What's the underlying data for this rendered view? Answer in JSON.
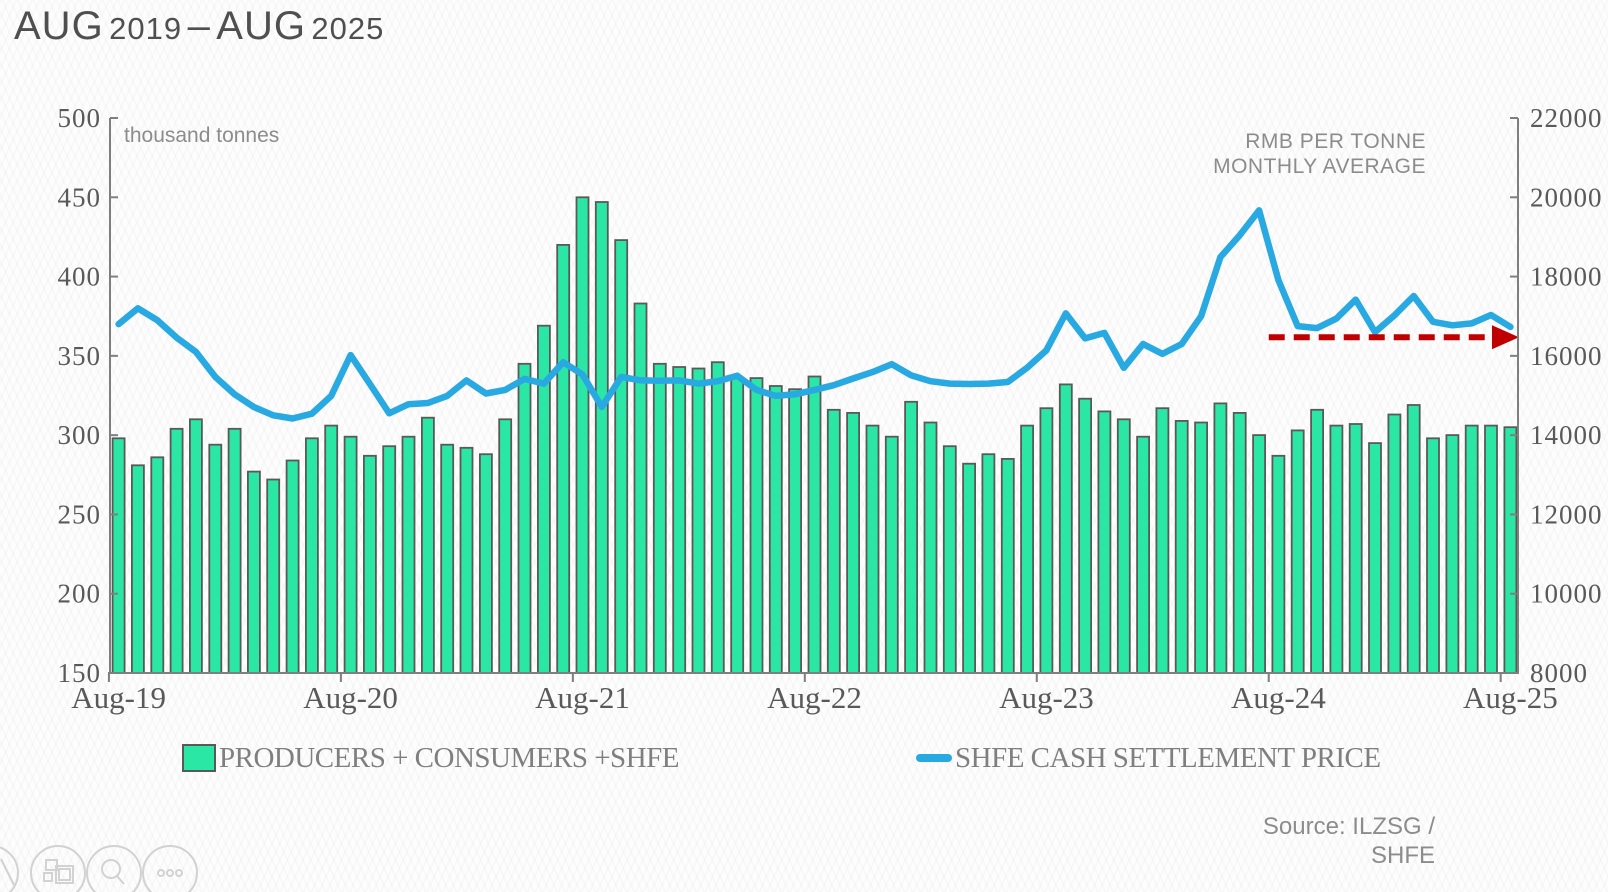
{
  "title": {
    "main1": "AUG",
    "year1": "2019",
    "sep": "–",
    "main2": "AUG",
    "year2": "2025"
  },
  "labels": {
    "left_unit": "thousand tonnes",
    "right_unit_line1": "RMB PER TONNE",
    "right_unit_line2": "MONTHLY AVERAGE"
  },
  "legend": {
    "bars_label": "PRODUCERS + CONSUMERS +SHFE",
    "line_label": "SHFE CASH SETTLEMENT PRICE"
  },
  "source": {
    "line1": "Source: ILZSG /",
    "line2": "SHFE"
  },
  "icons": {
    "pencil": "pencil-icon",
    "layout": "slide-layout-icon",
    "magnifier": "zoom-icon",
    "more": "more-options-icon"
  },
  "chart_data": {
    "type": "combo",
    "title": "AUG 2019 – AUG 2025",
    "grid": false,
    "legend_position": "bottom",
    "categories": [
      "Aug-19",
      "Sep-19",
      "Oct-19",
      "Nov-19",
      "Dec-19",
      "Jan-20",
      "Feb-20",
      "Mar-20",
      "Apr-20",
      "May-20",
      "Jun-20",
      "Jul-20",
      "Aug-20",
      "Sep-20",
      "Oct-20",
      "Nov-20",
      "Dec-20",
      "Jan-21",
      "Feb-21",
      "Mar-21",
      "Apr-21",
      "May-21",
      "Jun-21",
      "Jul-21",
      "Aug-21",
      "Sep-21",
      "Oct-21",
      "Nov-21",
      "Dec-21",
      "Jan-22",
      "Feb-22",
      "Mar-22",
      "Apr-22",
      "May-22",
      "Jun-22",
      "Jul-22",
      "Aug-22",
      "Sep-22",
      "Oct-22",
      "Nov-22",
      "Dec-22",
      "Jan-23",
      "Feb-23",
      "Mar-23",
      "Apr-23",
      "May-23",
      "Jun-23",
      "Jul-23",
      "Aug-23",
      "Sep-23",
      "Oct-23",
      "Nov-23",
      "Dec-23",
      "Jan-24",
      "Feb-24",
      "Mar-24",
      "Apr-24",
      "May-24",
      "Jun-24",
      "Jul-24",
      "Aug-24",
      "Sep-24",
      "Oct-24",
      "Nov-24",
      "Dec-24",
      "Jan-25",
      "Feb-25",
      "Mar-25",
      "Apr-25",
      "May-25",
      "Jun-25",
      "Jul-25",
      "Aug-25"
    ],
    "series": [
      {
        "name": "PRODUCERS + CONSUMERS +SHFE",
        "type": "bar",
        "axis": "left",
        "color": "#2BE7A5",
        "outline": "#595959",
        "values": [
          298,
          281,
          286,
          304,
          310,
          294,
          304,
          277,
          272,
          284,
          298,
          306,
          299,
          287,
          293,
          299,
          311,
          294,
          292,
          288,
          310,
          345,
          369,
          420,
          450,
          447,
          423,
          383,
          345,
          343,
          342,
          346,
          336,
          336,
          331,
          329,
          337,
          316,
          314,
          306,
          299,
          321,
          308,
          293,
          282,
          288,
          285,
          306,
          317,
          332,
          323,
          315,
          310,
          299,
          317,
          309,
          308,
          320,
          314,
          300,
          287,
          303,
          316,
          306,
          307,
          295,
          313,
          319,
          298,
          300,
          306,
          306,
          305
        ]
      },
      {
        "name": "SHFE CASH SETTLEMENT PRICE",
        "type": "line",
        "axis": "right",
        "color": "#29A9E2",
        "values": [
          16800,
          17200,
          16900,
          16460,
          16100,
          15470,
          15030,
          14710,
          14500,
          14420,
          14540,
          14990,
          16020,
          15290,
          14550,
          14780,
          14810,
          14990,
          15380,
          15050,
          15140,
          15420,
          15300,
          15840,
          15530,
          14710,
          15470,
          15380,
          15370,
          15380,
          15300,
          15360,
          15500,
          15140,
          14990,
          15030,
          15140,
          15260,
          15430,
          15590,
          15790,
          15510,
          15360,
          15300,
          15290,
          15300,
          15340,
          15700,
          16140,
          17070,
          16440,
          16580,
          15700,
          16300,
          16050,
          16300,
          17000,
          18490,
          19040,
          19670,
          17910,
          16750,
          16700,
          16940,
          17420,
          16600,
          17020,
          17510,
          16860,
          16770,
          16820,
          17030,
          16730
        ]
      }
    ],
    "left_axis": {
      "min": 150,
      "max": 500,
      "ticks": [
        500,
        450,
        400,
        350,
        300,
        250,
        200,
        150
      ],
      "unit": "thousand tonnes"
    },
    "right_axis": {
      "min": 8000,
      "max": 22000,
      "ticks": [
        22000,
        20000,
        18000,
        16000,
        14000,
        12000,
        10000,
        8000
      ],
      "unit": "RMB PER TONNE MONTHLY AVERAGE"
    },
    "x_axis": {
      "tick_labels": [
        "Aug-19",
        "Aug-20",
        "Aug-21",
        "Aug-22",
        "Aug-23",
        "Aug-24",
        "Aug-25"
      ],
      "categories_per_tick": 12
    },
    "reference_arrow": {
      "value": 16470,
      "start_category": "Aug-24",
      "start_index": 60,
      "color": "#C00000",
      "style": "dashed",
      "direction": "right"
    },
    "axis_color": "#7f7f7f",
    "axis_text_color": "#595959"
  }
}
